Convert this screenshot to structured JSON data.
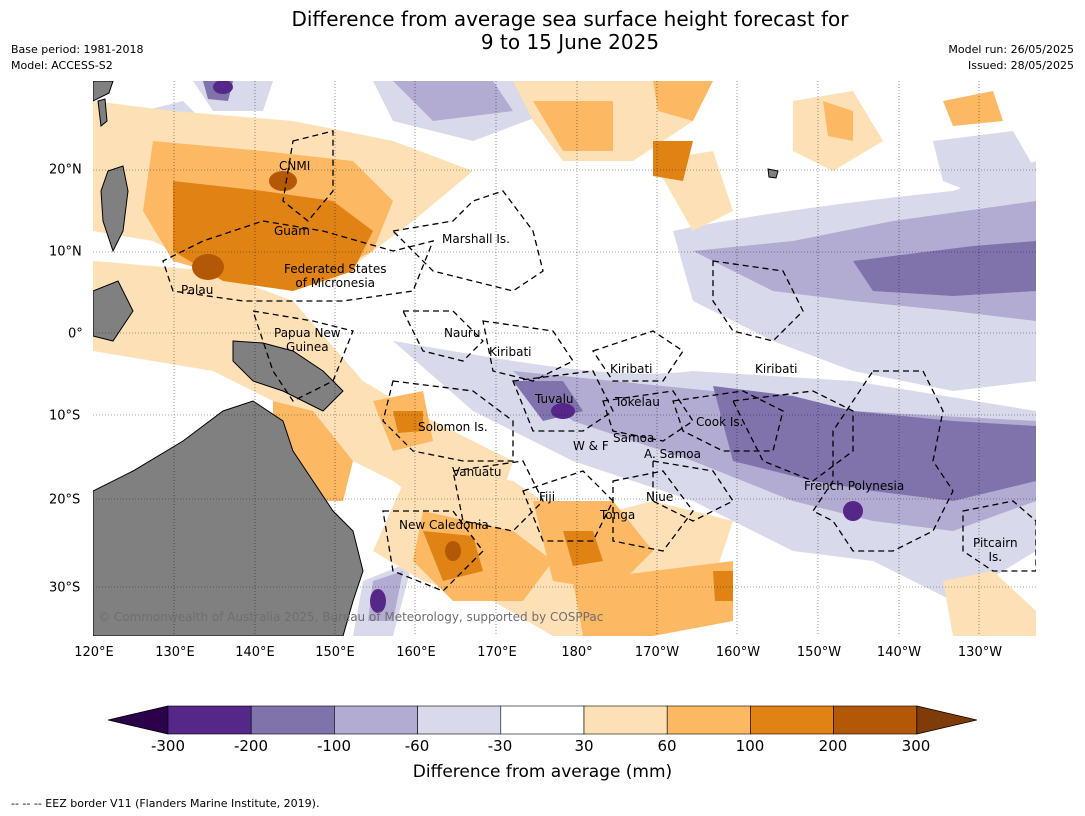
{
  "title_line1": "Difference from average sea surface height forecast for",
  "title_line2": "9 to 15 June 2025",
  "meta_left": [
    "Base period: 1981-2018",
    "Model: ACCESS-S2"
  ],
  "meta_right": [
    "Model run: 26/05/2025",
    "Issued: 28/05/2025"
  ],
  "longitude_labels": [
    "120°E",
    "130°E",
    "140°E",
    "150°E",
    "160°E",
    "170°E",
    "180°",
    "170°W",
    "160°W",
    "150°W",
    "140°W",
    "130°W"
  ],
  "latitude_labels": [
    "20°N",
    "10°N",
    "0°",
    "10°S",
    "20°S",
    "30°S"
  ],
  "places": {
    "cnmi": "CNMI",
    "guam": "Guam",
    "marshall": "Marshall Is.",
    "fsm1": "Federated States",
    "fsm2": "of Micronesia",
    "palau": "Palau",
    "png1": "Papua New",
    "png2": "Guinea",
    "nauru": "Nauru",
    "kiribati_w": "Kiribati",
    "kiribati_c": "Kiribati",
    "kiribati_e": "Kiribati",
    "tuvalu": "Tuvalu",
    "tokelau": "Tokelau",
    "cook": "Cook Is.",
    "solomon": "Solomon Is.",
    "samoa": "Samoa",
    "wf": "W & F",
    "asamoa": "A. Samoa",
    "vanuatu": "Vanuatu",
    "fiji": "Fiji",
    "niue": "Niue",
    "fp": "French Polynesia",
    "tonga": "Tonga",
    "newcal": "New Caledonia",
    "pitcairn1": "Pitcairn",
    "pitcairn2": "Is."
  },
  "copyright": "© Commonwealth of Australia 2025, Bureau of Meteorology, supported by COSPPac",
  "colorbar": {
    "ticks": [
      "-300",
      "-200",
      "-100",
      "-60",
      "-30",
      "30",
      "60",
      "100",
      "200",
      "300"
    ],
    "colors": [
      "#2d004b",
      "#542788",
      "#8073ac",
      "#b2abd2",
      "#d8daeb",
      "#ffffff",
      "#fee0b6",
      "#fdb863",
      "#e08214",
      "#b35806",
      "#7f3b08"
    ],
    "title": "Difference from average (mm)"
  },
  "footer": "--  --  -- EEZ border V11 (Flanders Marine Institute, 2019)."
}
